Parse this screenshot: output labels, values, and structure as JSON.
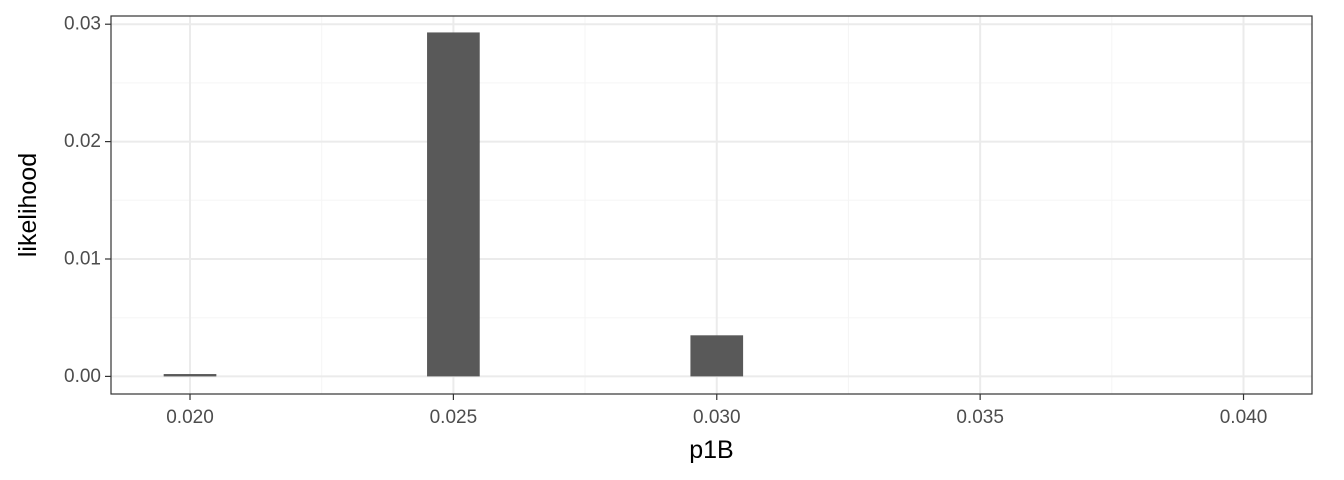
{
  "chart_data": {
    "type": "bar",
    "title": "",
    "xlabel": "p1B",
    "ylabel": "likelihood",
    "x": [
      0.02,
      0.025,
      0.03
    ],
    "values": [
      0.0002,
      0.0293,
      0.0035
    ],
    "xlim": [
      0.0185,
      0.0413
    ],
    "ylim": [
      -0.0015,
      0.0307
    ],
    "x_ticks": [
      0.02,
      0.025,
      0.03,
      0.035,
      0.04
    ],
    "x_tick_labels": [
      "0.020",
      "0.025",
      "0.030",
      "0.035",
      "0.040"
    ],
    "y_ticks": [
      0,
      0.01,
      0.02,
      0.03
    ],
    "y_tick_labels": [
      "0.00",
      "0.01",
      "0.02",
      "0.03"
    ],
    "bar_width": 0.001,
    "grid": true,
    "legend": "none",
    "colors": {
      "bar": "#595959",
      "grid_major": "#ebebeb",
      "grid_minor": "#f5f5f5",
      "panel_border": "#333333",
      "tick": "#333333"
    }
  }
}
